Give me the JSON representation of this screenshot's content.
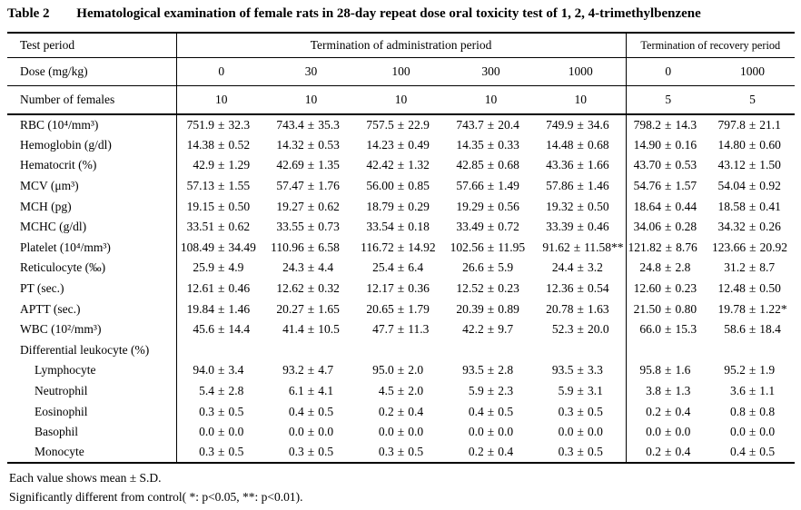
{
  "title": {
    "number": "Table 2",
    "caption": "Hematological examination of female rats in 28-day repeat dose oral toxicity test of 1, 2, 4-trimethylbenzene"
  },
  "header": {
    "test_period_label": "Test period",
    "admin_label": "Termination of administration period",
    "recovery_label": "Termination of recovery period",
    "dose": {
      "label": "Dose (mg/kg)",
      "values": [
        "0",
        "30",
        "100",
        "300",
        "1000",
        "0",
        "1000"
      ]
    },
    "females": {
      "label": "Number of females",
      "values": [
        "10",
        "10",
        "10",
        "10",
        "10",
        "5",
        "5"
      ]
    }
  },
  "table": {
    "rows": [
      {
        "label": "RBC (10⁴/mm³)",
        "indent": false,
        "values": [
          "751.9 ± 32.3",
          "743.4 ± 35.3",
          "757.5 ± 22.9",
          "743.7 ± 20.4",
          "749.9 ± 34.6",
          "798.2 ± 14.3",
          "797.8 ± 21.1"
        ]
      },
      {
        "label": "Hemoglobin (g/dl)",
        "indent": false,
        "values": [
          "14.38 ± 0.52",
          "14.32 ± 0.53",
          "14.23 ± 0.49",
          "14.35 ± 0.33",
          "14.48 ± 0.68",
          "14.90 ± 0.16",
          "14.80 ± 0.60"
        ]
      },
      {
        "label": "Hematocrit (%)",
        "indent": false,
        "values": [
          "42.9 ± 1.29",
          "42.69 ± 1.35",
          "42.42 ± 1.32",
          "42.85 ± 0.68",
          "43.36 ± 1.66",
          "43.70 ± 0.53",
          "43.12 ± 1.50"
        ]
      },
      {
        "label": "MCV (μm³)",
        "indent": false,
        "values": [
          "57.13 ± 1.55",
          "57.47 ± 1.76",
          "56.00 ± 0.85",
          "57.66 ± 1.49",
          "57.86 ± 1.46",
          "54.76 ± 1.57",
          "54.04 ± 0.92"
        ]
      },
      {
        "label": "MCH (pg)",
        "indent": false,
        "values": [
          "19.15 ± 0.50",
          "19.27 ± 0.62",
          "18.79 ± 0.29",
          "19.29 ± 0.56",
          "19.32 ± 0.50",
          "18.64 ± 0.44",
          "18.58 ± 0.41"
        ]
      },
      {
        "label": "MCHC (g/dl)",
        "indent": false,
        "values": [
          "33.51 ± 0.62",
          "33.55 ± 0.73",
          "33.54 ± 0.18",
          "33.49 ± 0.72",
          "33.39 ± 0.46",
          "34.06 ± 0.28",
          "34.32 ± 0.26"
        ]
      },
      {
        "label": "Platelet (10⁴/mm³)",
        "indent": false,
        "values": [
          "108.49 ± 34.49",
          "110.96 ± 6.58",
          "116.72 ± 14.92",
          "102.56 ± 11.95",
          "91.62 ± 11.58**",
          "121.82 ± 8.76",
          "123.66 ± 20.92"
        ]
      },
      {
        "label": "Reticulocyte (‰)",
        "indent": false,
        "values": [
          "25.9 ± 4.9",
          "24.3 ± 4.4",
          "25.4 ± 6.4",
          "26.6 ± 5.9",
          "24.4 ± 3.2",
          "24.8 ± 2.8",
          "31.2 ± 8.7"
        ]
      },
      {
        "label": "PT (sec.)",
        "indent": false,
        "values": [
          "12.61 ± 0.46",
          "12.62 ± 0.32",
          "12.17 ± 0.36",
          "12.52 ± 0.23",
          "12.36 ± 0.54",
          "12.60 ± 0.23",
          "12.48 ± 0.50"
        ]
      },
      {
        "label": "APTT (sec.)",
        "indent": false,
        "values": [
          "19.84 ± 1.46",
          "20.27 ± 1.65",
          "20.65 ± 1.79",
          "20.39 ± 0.89",
          "20.78 ± 1.63",
          "21.50 ± 0.80",
          "19.78 ± 1.22*"
        ]
      },
      {
        "label": "WBC (10²/mm³)",
        "indent": false,
        "values": [
          "45.6 ± 14.4",
          "41.4 ± 10.5",
          "47.7 ± 11.3",
          "42.2 ± 9.7",
          "52.3 ± 20.0",
          "66.0 ± 15.3",
          "58.6 ± 18.4"
        ]
      },
      {
        "label": "Differential leukocyte (%)",
        "indent": false,
        "values": []
      },
      {
        "label": "Lymphocyte",
        "indent": true,
        "values": [
          "94.0 ± 3.4",
          "93.2 ± 4.7",
          "95.0 ± 2.0",
          "93.5 ± 2.8",
          "93.5 ± 3.3",
          "95.8 ± 1.6",
          "95.2 ± 1.9"
        ]
      },
      {
        "label": "Neutrophil",
        "indent": true,
        "values": [
          "5.4 ± 2.8",
          "6.1 ± 4.1",
          "4.5 ± 2.0",
          "5.9 ± 2.3",
          "5.9 ± 3.1",
          "3.8 ± 1.3",
          "3.6 ± 1.1"
        ]
      },
      {
        "label": "Eosinophil",
        "indent": true,
        "values": [
          "0.3 ± 0.5",
          "0.4 ± 0.5",
          "0.2 ± 0.4",
          "0.4 ± 0.5",
          "0.3 ± 0.5",
          "0.2 ± 0.4",
          "0.8 ± 0.8"
        ]
      },
      {
        "label": "Basophil",
        "indent": true,
        "values": [
          "0.0 ± 0.0",
          "0.0 ± 0.0",
          "0.0 ± 0.0",
          "0.0 ± 0.0",
          "0.0 ± 0.0",
          "0.0 ± 0.0",
          "0.0 ± 0.0"
        ]
      },
      {
        "label": "Monocyte",
        "indent": true,
        "values": [
          "0.3 ± 0.5",
          "0.3 ± 0.5",
          "0.3 ± 0.5",
          "0.2 ± 0.4",
          "0.3 ± 0.5",
          "0.2 ± 0.4",
          "0.4 ± 0.5"
        ]
      }
    ]
  },
  "footnotes": [
    "Each value shows mean ± S.D.",
    "Significantly different from control( *: p<0.05, **: p<0.01)."
  ]
}
